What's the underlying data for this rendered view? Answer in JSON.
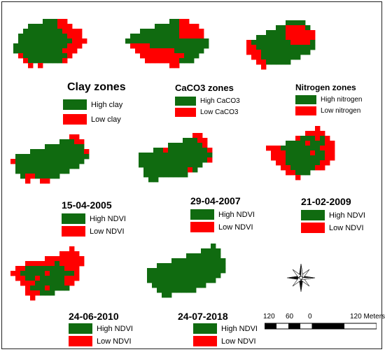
{
  "colors": {
    "high": "#106b10",
    "low": "#ff0000"
  },
  "panels": [
    {
      "id": "clay",
      "title": "Clay zones",
      "legend": [
        "High clay",
        "Low clay"
      ],
      "map": [
        "....................",
        ".......GGGRR........",
        "....GGGGGGRRR.......",
        "...GGGGGGGGRRRR.....",
        "..GGGGGGGGGGRRR.....",
        "..GGGGGGGGGGGRRR....",
        ".GGGGGGGGGGGRRR.....",
        ".GGGGGGGGGGRRR......",
        "..RGGGGGGGGGR.......",
        "...RGGGGGGGR........",
        "....R.R.............",
        "...................."
      ]
    },
    {
      "id": "caco3",
      "title": "CaCO3 zones",
      "legend": [
        "High CaCO3",
        "Low CaCO3"
      ],
      "map": [
        "....................",
        "..........GGRR......",
        ".......GGGGGRRRR....",
        "....GGGGGGGGRRRRR...",
        "..GGGGGGGGGGRRRRR...",
        ".GGGGGGGGGGGGGGGGG..",
        "..RRRRGGGGGGGGGGGG..",
        "...RRRRRRRRGGGGGG...",
        "....RRRRRRRRRGGG....",
        ".....RRRRRRRGGG.....",
        "..........RR........",
        "...................."
      ]
    },
    {
      "id": "nitrogen",
      "title": "Nitrogen zones",
      "legend": [
        "High nitrogen",
        "Low nitrogen"
      ],
      "map": [
        "....................",
        "..........GGGG......",
        "........GGRRRRG.....",
        "......GGGGRRRRRR....",
        "....GGGGGGRRRRRR....",
        "..RGGGGGGGGRRRRG....",
        "..RRGGGGGGGGGGGG....",
        "..RRRGGGGGGGGGG.....",
        "...RRGGGGGGGG.......",
        "....RRGGGGG.........",
        ".....R..............",
        "...................."
      ]
    },
    {
      "id": "ndvi2005",
      "title": "15-04-2005",
      "legend": [
        "High NDVI",
        "Low NDVI"
      ],
      "map": [
        "....................",
        ".............RR.....",
        "...........GGGRR....",
        "........GGGGGGGG....",
        ".....GGGGGGGGGGGR...",
        "..GGGGGGGGGGGGGGG...",
        ".RGGGGGGGGGGGGGG....",
        "..GGGGGGGGGGGGG.....",
        "..GGGGGGGGGGG.......",
        "...GRRGGGGG.........",
        "....R..RR...........",
        "...................."
      ]
    },
    {
      "id": "ndvi2007",
      "title": "29-04-2007",
      "legend": [
        "High NDVI",
        "Low NDVI"
      ],
      "map": [
        "....................",
        ".............RR.....",
        "...........GGGRR....",
        "........GGGGGGGR....",
        ".....GGRGGGGGGGGR...",
        "..GGGGGGGGGGGGGGG...",
        "..GGGGGGGGGGGGGGR...",
        "..GGGGGGGGGGGGG.....",
        "...GGGGGGGGGRG......",
        "...GGGGGGGGG........",
        "....GG..............",
        "...................."
      ]
    },
    {
      "id": "ndvi2009",
      "title": "21-02-2009",
      "legend": [
        "High NDVI",
        "Low NDVI"
      ],
      "map": [
        "............R.......",
        "..........RRRR......",
        "........RGGGRGR.....",
        "......GGGGRGGGRR....",
        "..RRRGGGGGGGGRRR....",
        "...RRRGGGGGRGGRR....",
        "...RRRGGGGGGGGRR....",
        "....RRGGGGGGGRR.....",
        ".....RRGGGGGRR......",
        "......RRGGG.........",
        "........R...........",
        "...................."
      ]
    },
    {
      "id": "ndvi2010",
      "title": "24-06-2010",
      "legend": [
        "High NDVI",
        "Low NDVI"
      ],
      "map": [
        ".............R......",
        "...........RRRR.....",
        "........RRRRRRRR....",
        "....RRRRRRGRRRRR....",
        "..RRGGGGGGGGRRR.....",
        ".RRGGGGGRGGGGGR.....",
        "..RRGGRGGGGGRRR.....",
        "...RRRGGGGGGRR......",
        "....RGGGRGGGG.......",
        "....RRRGGG..........",
        ".....R..............",
        "...................."
      ]
    },
    {
      "id": "ndvi2018",
      "title": "24-07-2018",
      "legend": [
        "High NDVI",
        "Low NDVI"
      ],
      "map": [
        "...............G....",
        ".............GGGG...",
        "..........GGGGGGG...",
        ".......GGGGGGGGGGG..",
        "....GGGGGGGGGGGGGG..",
        "..GGGGGGGGGGGGGGGG..",
        "..GGGGGGGGGGGGGGG...",
        "..GGGGGGGGGGGGGG....",
        "...GGGGGGGGGGG......",
        "....GGGGGGGG........",
        ".....GG.............",
        "...................."
      ]
    }
  ],
  "scale_bar": {
    "labels": [
      "120",
      "60",
      "0",
      "120 Meters"
    ]
  }
}
